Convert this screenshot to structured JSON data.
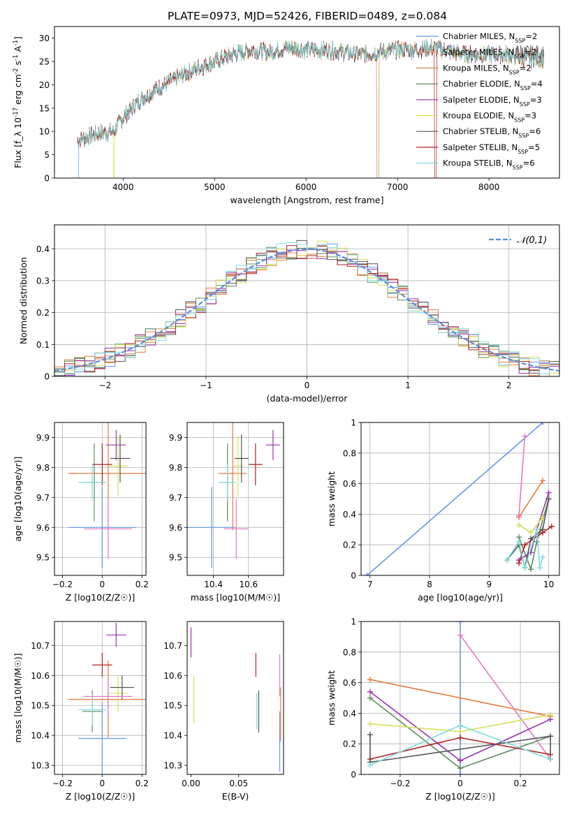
{
  "figure": {
    "title": "PLATE=0973, MJD=52426, FIBERID=0489, z=0.084"
  },
  "chart_data": [
    {
      "id": "spectrum",
      "type": "line",
      "xlabel": "wavelength [Angstrom, rest frame]",
      "ylabel": "Flux [f_λ 10^{-17} erg cm^{-2} s^{-1} A^{-1}]",
      "xlim": [
        3250,
        8770
      ],
      "ylim": [
        0,
        32.5
      ],
      "xticks": [
        4000,
        5000,
        6000,
        7000,
        8000
      ],
      "yticks": [
        0,
        5,
        10,
        15,
        20,
        25,
        30
      ],
      "grid": false,
      "legend_position": "top-right",
      "continuum_points": [
        [
          3500,
          8
        ],
        [
          3700,
          9.5
        ],
        [
          3900,
          10
        ],
        [
          4000,
          13
        ],
        [
          4200,
          17
        ],
        [
          4400,
          19.5
        ],
        [
          4600,
          21.5
        ],
        [
          4800,
          23.5
        ],
        [
          5000,
          25
        ],
        [
          5200,
          26.5
        ],
        [
          5400,
          27.5
        ],
        [
          5600,
          27
        ],
        [
          5800,
          28
        ],
        [
          6000,
          27.5
        ],
        [
          6200,
          27.5
        ],
        [
          6400,
          27
        ],
        [
          6600,
          26.5
        ],
        [
          6800,
          27
        ],
        [
          7000,
          27.5
        ],
        [
          7200,
          27.5
        ],
        [
          7400,
          28
        ],
        [
          7600,
          27
        ],
        [
          7800,
          26.5
        ],
        [
          8000,
          26.5
        ],
        [
          8200,
          26.5
        ],
        [
          8400,
          25.5
        ],
        [
          8600,
          25.5
        ]
      ],
      "series": [
        {
          "name": "Chabrier MILES, N_SSP=2",
          "color": "#6495ED"
        },
        {
          "name": "Salpeter MILES, N_SSP=2",
          "color": "#E8793A"
        },
        {
          "name": "Kroupa MILES, N_SSP=2",
          "color": "#C88A4A"
        },
        {
          "name": "Chabrier ELODIE, N_SSP=4",
          "color": "#5E8C5E"
        },
        {
          "name": "Salpeter ELODIE, N_SSP=3",
          "color": "#9B30B0"
        },
        {
          "name": "Kroupa ELODIE, N_SSP=3",
          "color": "#D4E157"
        },
        {
          "name": "Chabrier STELIB, N_SSP=6",
          "color": "#555555"
        },
        {
          "name": "Salpeter STELIB, N_SSP=5",
          "color": "#B22222"
        },
        {
          "name": "Kroupa STELIB, N_SSP=6",
          "color": "#7FDBDB"
        }
      ]
    },
    {
      "id": "residuals",
      "type": "line",
      "xlabel": "(data-model)/error",
      "ylabel": "Normed distribution",
      "xlim": [
        -2.5,
        2.5
      ],
      "ylim": [
        0,
        0.475
      ],
      "xticks": [
        -2,
        -1,
        0,
        1,
        2
      ],
      "yticks": [
        0.0,
        0.1,
        0.2,
        0.3,
        0.4
      ],
      "grid": true,
      "legend_position": "top-right",
      "legend": "𝒩(0,1)",
      "gaussian_color": "#5B8DD9"
    },
    {
      "id": "z_age",
      "type": "scatter",
      "xlabel": "Z [log10(Z/Z☉)]",
      "ylabel": "age [log10(age/yr)]",
      "xlim": [
        -0.24,
        0.22
      ],
      "ylim": [
        9.44,
        9.95
      ],
      "xticks": [
        -0.2,
        0.0,
        0.2
      ],
      "yticks": [
        9.5,
        9.6,
        9.7,
        9.8,
        9.9
      ],
      "grid": true,
      "points": [
        {
          "color": "#6495ED",
          "x": 0.0,
          "y": 9.6,
          "xerr": 0.17,
          "yerr": 0.135
        },
        {
          "color": "#E8793A",
          "x": 0.03,
          "y": 9.78,
          "xerr": 0.2,
          "yerr": 0.19
        },
        {
          "color": "#5E8C5E",
          "x": -0.04,
          "y": 9.75,
          "xerr": 0.05,
          "yerr": 0.13
        },
        {
          "color": "#9B30B0",
          "x": 0.07,
          "y": 9.875,
          "xerr": 0.05,
          "yerr": 0.05
        },
        {
          "color": "#D4E157",
          "x": 0.08,
          "y": 9.805,
          "xerr": 0.05,
          "yerr": 0.1
        },
        {
          "color": "#555555",
          "x": 0.09,
          "y": 9.83,
          "xerr": 0.05,
          "yerr": 0.08
        },
        {
          "color": "#B22222",
          "x": 0.0,
          "y": 9.81,
          "xerr": 0.05,
          "yerr": 0.07
        },
        {
          "color": "#7FDBDB",
          "x": -0.05,
          "y": 9.75,
          "xerr": 0.07,
          "yerr": 0.06
        },
        {
          "color": "#E377C2",
          "x": 0.03,
          "y": 9.595,
          "xerr": 0.12,
          "yerr": 0.1
        }
      ]
    },
    {
      "id": "mass_age",
      "type": "scatter",
      "xlabel": "mass [log10(M/M☉)]",
      "ylabel": "",
      "xlim": [
        10.25,
        10.8
      ],
      "ylim": [
        9.44,
        9.95
      ],
      "xticks": [
        10.4,
        10.6
      ],
      "yticks": [
        9.5,
        9.6,
        9.7,
        9.8,
        9.9
      ],
      "grid": true,
      "points": [
        {
          "color": "#6495ED",
          "x": 10.39,
          "y": 9.6,
          "xerr": 0.14,
          "yerr": 0.135
        },
        {
          "color": "#E8793A",
          "x": 10.51,
          "y": 9.78,
          "xerr": 0.08,
          "yerr": 0.19
        },
        {
          "color": "#5E8C5E",
          "x": 10.48,
          "y": 9.75,
          "xerr": 0.03,
          "yerr": 0.13
        },
        {
          "color": "#9B30B0",
          "x": 10.74,
          "y": 9.875,
          "xerr": 0.04,
          "yerr": 0.05
        },
        {
          "color": "#D4E157",
          "x": 10.54,
          "y": 9.805,
          "xerr": 0.03,
          "yerr": 0.1
        },
        {
          "color": "#555555",
          "x": 10.56,
          "y": 9.83,
          "xerr": 0.04,
          "yerr": 0.08
        },
        {
          "color": "#B22222",
          "x": 10.64,
          "y": 9.81,
          "xerr": 0.04,
          "yerr": 0.07
        },
        {
          "color": "#7FDBDB",
          "x": 10.48,
          "y": 9.75,
          "xerr": 0.05,
          "yerr": 0.06
        },
        {
          "color": "#E377C2",
          "x": 10.53,
          "y": 9.595,
          "xerr": 0.07,
          "yerr": 0.1
        }
      ]
    },
    {
      "id": "age_weight",
      "type": "line",
      "xlabel": "age [log10(age/yr)]",
      "ylabel": "mass weight",
      "xlim": [
        6.85,
        10.18
      ],
      "ylim": [
        0,
        1
      ],
      "xticks": [
        7,
        8,
        9,
        10
      ],
      "yticks": [
        0.0,
        0.2,
        0.4,
        0.6,
        0.8,
        1.0
      ],
      "grid": true,
      "series": [
        {
          "color": "#6495ED",
          "points": [
            [
              6.95,
              0.0
            ],
            [
              9.9,
              1.0
            ]
          ]
        },
        {
          "color": "#E8793A",
          "points": [
            [
              9.5,
              0.38
            ],
            [
              9.9,
              0.62
            ]
          ]
        },
        {
          "color": "#E377C2",
          "points": [
            [
              9.5,
              0.39
            ],
            [
              9.6,
              0.91
            ]
          ]
        },
        {
          "color": "#5E8C5E",
          "points": [
            [
              9.5,
              0.25
            ],
            [
              9.7,
              0.04
            ],
            [
              9.8,
              0.22
            ],
            [
              10.0,
              0.5
            ]
          ]
        },
        {
          "color": "#9B30B0",
          "points": [
            [
              9.5,
              0.1
            ],
            [
              9.7,
              0.15
            ],
            [
              9.8,
              0.3
            ],
            [
              10.0,
              0.54
            ]
          ]
        },
        {
          "color": "#D4E157",
          "points": [
            [
              9.5,
              0.33
            ],
            [
              9.7,
              0.28
            ],
            [
              9.9,
              0.38
            ]
          ]
        },
        {
          "color": "#555555",
          "points": [
            [
              9.3,
              0.1
            ],
            [
              9.5,
              0.2
            ],
            [
              9.6,
              0.05
            ],
            [
              9.7,
              0.24
            ],
            [
              9.9,
              0.3
            ],
            [
              10.0,
              0.5
            ]
          ]
        },
        {
          "color": "#B22222",
          "points": [
            [
              9.5,
              0.08
            ],
            [
              9.6,
              0.2
            ],
            [
              9.9,
              0.28
            ],
            [
              10.05,
              0.32
            ]
          ]
        },
        {
          "color": "#7FDBDB",
          "points": [
            [
              9.3,
              0.1
            ],
            [
              9.5,
              0.22
            ],
            [
              9.6,
              0.05
            ],
            [
              9.8,
              0.3
            ],
            [
              9.85,
              0.05
            ],
            [
              9.9,
              0.12
            ]
          ]
        }
      ]
    },
    {
      "id": "z_mass",
      "type": "scatter",
      "xlabel": "Z [log10(Z/Z☉)]",
      "ylabel": "mass [log10(M/M☉)]",
      "xlim": [
        -0.24,
        0.22
      ],
      "ylim": [
        10.27,
        10.78
      ],
      "xticks": [
        -0.2,
        0.0,
        0.2
      ],
      "yticks": [
        10.3,
        10.4,
        10.5,
        10.6,
        10.7
      ],
      "grid": true,
      "points": [
        {
          "color": "#6495ED",
          "x": 0.0,
          "y": 10.39,
          "xerr": 0.12,
          "yerr": 0.12
        },
        {
          "color": "#E8793A",
          "x": 0.03,
          "y": 10.52,
          "xerr": 0.2,
          "yerr": 0.13
        },
        {
          "color": "#5E8C5E",
          "x": -0.05,
          "y": 10.48,
          "xerr": 0.05,
          "yerr": 0.07
        },
        {
          "color": "#9B30B0",
          "x": 0.07,
          "y": 10.735,
          "xerr": 0.05,
          "yerr": 0.04
        },
        {
          "color": "#D4E157",
          "x": 0.08,
          "y": 10.54,
          "xerr": 0.05,
          "yerr": 0.06
        },
        {
          "color": "#555555",
          "x": 0.1,
          "y": 10.56,
          "xerr": 0.06,
          "yerr": 0.04
        },
        {
          "color": "#B22222",
          "x": 0.0,
          "y": 10.635,
          "xerr": 0.05,
          "yerr": 0.04
        },
        {
          "color": "#7FDBDB",
          "x": -0.05,
          "y": 10.485,
          "xerr": 0.07,
          "yerr": 0.05
        },
        {
          "color": "#E377C2",
          "x": 0.03,
          "y": 10.53,
          "xerr": 0.12,
          "yerr": 0.06
        }
      ]
    },
    {
      "id": "ebv_mass",
      "type": "scatter",
      "xlabel": "E(B-V)",
      "ylabel": "",
      "xlim": [
        -0.004,
        0.097
      ],
      "ylim": [
        10.27,
        10.78
      ],
      "xticks": [
        0.0,
        0.05
      ],
      "xticklabels": [
        "0.00",
        "0.05"
      ],
      "yticks": [
        10.3,
        10.4,
        10.5,
        10.6,
        10.7
      ],
      "grid": false,
      "points": [
        {
          "color": "#9B30B0",
          "x": 0.0,
          "y": 10.71,
          "yerr": 0.05
        },
        {
          "color": "#D4E157",
          "x": 0.003,
          "y": 10.52,
          "yerr": 0.08
        },
        {
          "color": "#B22222",
          "x": 0.068,
          "y": 10.635,
          "yerr": 0.04
        },
        {
          "color": "#7FDBDB",
          "x": 0.069,
          "y": 10.48,
          "yerr": 0.06
        },
        {
          "color": "#555555",
          "x": 0.071,
          "y": 10.48,
          "yerr": 0.07
        },
        {
          "color": "#E8793A",
          "x": 0.094,
          "y": 10.47,
          "yerr": 0.09
        },
        {
          "color": "#E377C2",
          "x": 0.093,
          "y": 10.6,
          "yerr": 0.07
        },
        {
          "color": "#6495ED",
          "x": 0.093,
          "y": 10.38,
          "yerr": 0.1
        }
      ]
    },
    {
      "id": "z_weight",
      "type": "line",
      "xlabel": "Z [log10(Z/Z☉)]",
      "ylabel": "mass weight",
      "xlim": [
        -0.33,
        0.33
      ],
      "ylim": [
        0,
        1
      ],
      "xticks": [
        -0.2,
        0.0,
        0.2
      ],
      "yticks": [
        0.0,
        0.2,
        0.4,
        0.6,
        0.8,
        1.0
      ],
      "grid": true,
      "series": [
        {
          "color": "#6495ED",
          "points": [
            [
              0.0,
              1.0
            ],
            [
              0.0,
              0.0
            ]
          ]
        },
        {
          "color": "#E8793A",
          "points": [
            [
              -0.3,
              0.62
            ],
            [
              0.3,
              0.38
            ]
          ]
        },
        {
          "color": "#E377C2",
          "points": [
            [
              0.0,
              0.91
            ],
            [
              0.3,
              0.1
            ]
          ]
        },
        {
          "color": "#5E8C5E",
          "points": [
            [
              -0.3,
              0.5
            ],
            [
              0.0,
              0.04
            ],
            [
              0.3,
              0.25
            ]
          ]
        },
        {
          "color": "#9B30B0",
          "points": [
            [
              -0.3,
              0.54
            ],
            [
              0.0,
              0.09
            ],
            [
              0.3,
              0.36
            ]
          ]
        },
        {
          "color": "#D4E157",
          "points": [
            [
              -0.3,
              0.33
            ],
            [
              0.0,
              0.28
            ],
            [
              0.3,
              0.39
            ]
          ]
        },
        {
          "color": "#B22222",
          "points": [
            [
              -0.3,
              0.1
            ],
            [
              0.0,
              0.24
            ],
            [
              0.3,
              0.13
            ]
          ]
        },
        {
          "color": "#555555",
          "points": [
            [
              -0.3,
              0.26
            ],
            [
              -0.3,
              0.08
            ],
            [
              0.3,
              0.25
            ],
            [
              0.3,
              0.1
            ]
          ]
        },
        {
          "color": "#7FDBDB",
          "points": [
            [
              -0.3,
              0.06
            ],
            [
              0.0,
              0.32
            ],
            [
              0.3,
              0.1
            ]
          ]
        }
      ]
    }
  ]
}
